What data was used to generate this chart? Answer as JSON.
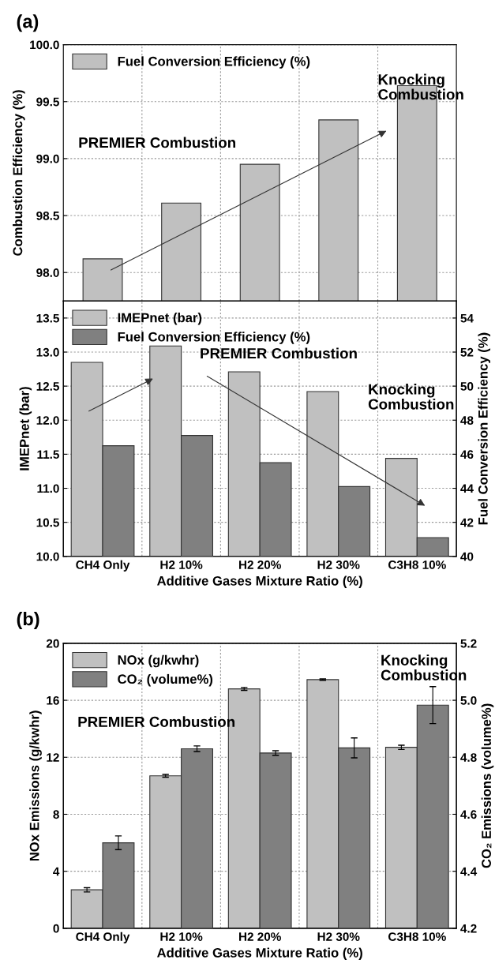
{
  "chart_data": [
    {
      "type": "bar",
      "title": "(a)",
      "ylabel": "Combustion Efficiency (%)",
      "categories": [
        null,
        null,
        null,
        null,
        null
      ],
      "series": [
        {
          "name": "Fuel Conversion Efficiency (%)",
          "color": "#c0c0c0",
          "values": [
            98.12,
            98.61,
            98.95,
            99.34,
            99.64
          ]
        }
      ],
      "ylim": [
        97.75,
        100.0
      ],
      "yticks": [
        {
          "value": 98,
          "label": "98.0"
        },
        {
          "value": 98.5,
          "label": "98.5"
        },
        {
          "value": 99,
          "label": "99.0"
        },
        {
          "value": 99.5,
          "label": "99.5"
        },
        {
          "value": 100,
          "label": "100.0"
        }
      ],
      "grid": true,
      "legend": "top left",
      "annotations": [
        "PREMIER Combustion",
        "Knocking\nCombustion"
      ]
    },
    {
      "type": "bar",
      "xlabel": "Additive Gases Mixture Ratio (%)",
      "ylabel": "IMEPnet (bar)",
      "y2label": "Fuel Conversion Efficiency (%)",
      "categories": [
        "CH4 Only",
        "H2 10%",
        "H2 20%",
        "H2 30%",
        "C3H8 10%"
      ],
      "series": [
        {
          "name": "IMEPnet (bar)",
          "color": "#c0c0c0",
          "values": [
            12.85,
            13.09,
            12.71,
            12.42,
            11.44
          ]
        },
        {
          "name": "Fuel Conversion Efficiency (%)",
          "color": "#808080",
          "axis": "y2",
          "values": [
            46.5,
            47.1,
            45.5,
            44.1,
            41.1
          ]
        }
      ],
      "ylim": [
        10.0,
        13.75
      ],
      "yticks": [
        {
          "value": 10,
          "label": "10.0"
        },
        {
          "value": 10.5,
          "label": "10.5"
        },
        {
          "value": 11,
          "label": "11.0"
        },
        {
          "value": 11.5,
          "label": "11.5"
        },
        {
          "value": 12,
          "label": "12.0"
        },
        {
          "value": 12.5,
          "label": "12.5"
        },
        {
          "value": 13,
          "label": "13.0"
        },
        {
          "value": 13.5,
          "label": "13.5"
        }
      ],
      "y2lim": [
        40,
        55
      ],
      "y2ticks": [
        40,
        42,
        44,
        46,
        48,
        50,
        52,
        54
      ],
      "grid": true,
      "legend": "top left",
      "annotations": [
        "PREMIER Combustion",
        "Knocking\nCombustion"
      ]
    },
    {
      "type": "bar",
      "title": "(b)",
      "xlabel": "Additive Gases Mixture Ratio (%)",
      "ylabel": "NOx Emissions (g/kwhr)",
      "y2label": "CO₂ Emissions (volume%)",
      "categories": [
        "CH4 Only",
        "H2 10%",
        "H2 20%",
        "H2 30%",
        "C3H8 10%"
      ],
      "series": [
        {
          "name": "NOx (g/kwhr)",
          "color": "#c0c0c0",
          "values": [
            2.7,
            10.7,
            16.8,
            17.45,
            12.7
          ],
          "errors": [
            0.15,
            0.1,
            0.1,
            0.05,
            0.15
          ]
        },
        {
          "name": "CO₂ (volume%)",
          "color": "#808080",
          "axis": "y2",
          "values": [
            4.5,
            4.83,
            4.815,
            4.833,
            4.983
          ],
          "errors": [
            0.024,
            0.01,
            0.008,
            0.035,
            0.065
          ]
        }
      ],
      "ylim": [
        0,
        20
      ],
      "yticks": [
        0,
        4,
        8,
        12,
        16,
        20
      ],
      "y2lim": [
        4.2,
        5.2
      ],
      "y2ticks": [
        4.2,
        4.4,
        4.6,
        4.8,
        {
          "value": 5.0,
          "label": "5.0"
        },
        5.2
      ],
      "grid": true,
      "legend": "top left",
      "annotations": [
        "PREMIER Combustion",
        "Knocking\nCombustion"
      ]
    }
  ]
}
